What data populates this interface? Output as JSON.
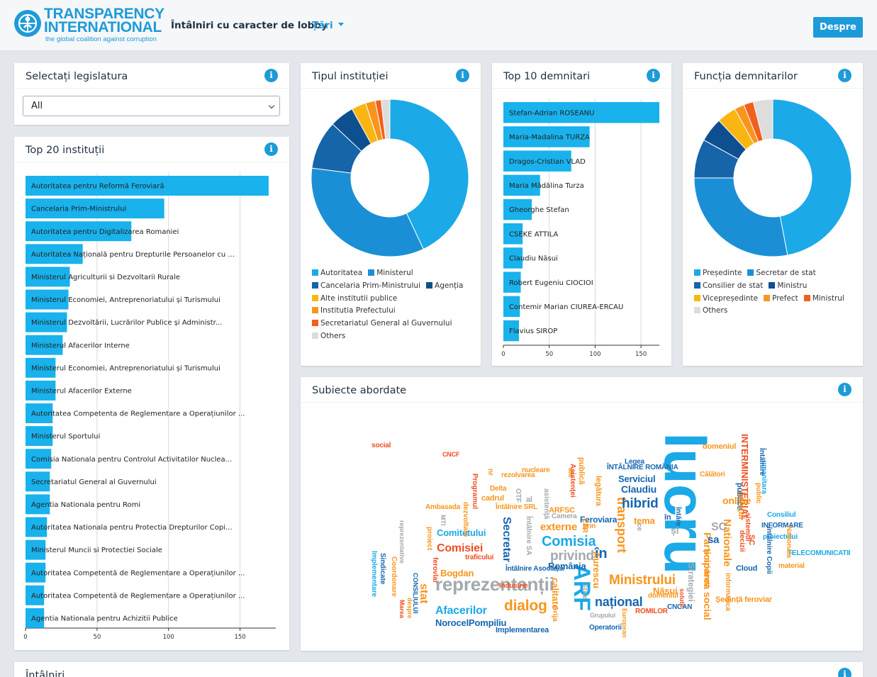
{
  "header": {
    "brand_line1": "TRANSPARENCY",
    "brand_line2": "INTERNATIONAL",
    "tagline": "the global coalition against corruption",
    "title": "Întâlniri cu caracter de lobby",
    "countries": "Țări",
    "about": "Despre"
  },
  "legislature": {
    "title": "Selectați legislatura",
    "value": "All",
    "info": "i"
  },
  "top20": {
    "title": "Top 20 instituții",
    "info": "i",
    "chart_data": {
      "type": "bar",
      "orientation": "horizontal",
      "categories": [
        "Autoritatea pentru Reformă Feroviară",
        "Cancelaria Prim-Ministrului",
        "Autoritatea pentru Digitalizarea Romaniei",
        "Autoritatea Națională pentru Drepturile Persoanelor cu ...",
        "Ministerul Agriculturii si Dezvoltarii Rurale",
        "Ministerul Economiei, Antreprenoriatului și Turismului",
        "Ministerul Dezvoltării, Lucrărilor Publice și Administr...",
        "Ministerul Afacerilor Interne",
        "Ministerul Economiei, Antreprenoriatului și Turismului",
        "Ministerul Afacerilor Externe",
        "Autoritatea Competenta de Reglementare a Operațiunilor ...",
        "Ministerul Sportului",
        "Comisia Nationala pentru Controlul Activitatilor Nuclea...",
        "Secretariatul General al Guvernului",
        "Agentia Nationala pentru Romi",
        "Autoritatea Nationala pentru Protectia Drepturilor Copi...",
        "Ministerul Muncii si Protectiei Sociale",
        "Autoritatea Competentă de Reglementare a Operațiunilor ...",
        "Autoritatea Competentă de Reglementare a Operațiunilor ...",
        "Agentia Nationala pentru Achizitii Publice"
      ],
      "values": [
        170,
        97,
        74,
        40,
        31,
        30,
        29,
        26,
        21,
        21,
        19,
        19,
        18,
        17,
        17,
        15,
        14,
        14,
        13,
        13
      ],
      "xticks": [
        "0",
        "50",
        "100",
        "150"
      ],
      "xlim": [
        0,
        175
      ]
    }
  },
  "tipul": {
    "title": "Tipul instituției",
    "info": "i",
    "chart_data": {
      "type": "pie",
      "donut": true,
      "labels": [
        "Autoritatea",
        "Ministerul",
        "Cancelaria Prim-Ministrului",
        "Agenția",
        "Alte institutii publice",
        "Institutia Prefectului",
        "Secretariatul General al Guvernului",
        "Others"
      ],
      "values": [
        43,
        34,
        10,
        5,
        3,
        2,
        1.2,
        1.8
      ],
      "colors": [
        "#1ba9e8",
        "#1b8fd6",
        "#1565a8",
        "#0e4f90",
        "#fbb513",
        "#f8951d",
        "#f2601d",
        "#dddddd"
      ]
    }
  },
  "top10": {
    "title": "Top 10 demnitari",
    "info": "i",
    "chart_data": {
      "type": "bar",
      "orientation": "horizontal",
      "categories": [
        "Stefan-Adrian ROSEANU",
        "Maria-Madalina TURZA",
        "Dragos-Cristian VLAD",
        "Maria Mădălina Turza",
        "Gheorghe Stefan",
        "CSEKE ATTILA",
        "Claudiu Năsui",
        "Robert Eugeniu CIOCIOI",
        "Contemir Marian CIUREA-ERCAU",
        "Flavius SIROP"
      ],
      "values": [
        170,
        94,
        74,
        40,
        31,
        21,
        21,
        19,
        18,
        17
      ],
      "xticks": [
        "0",
        "50",
        "100",
        "150"
      ],
      "xlim": [
        0,
        170
      ]
    }
  },
  "functia": {
    "title": "Funcția demnitarilor",
    "info": "i",
    "chart_data": {
      "type": "pie",
      "donut": true,
      "labels": [
        "Președinte",
        "Secretar de stat",
        "Consilier de stat",
        "Ministru",
        "Vicepreședinte",
        "Prefect",
        "Ministrul",
        "Others"
      ],
      "values": [
        47,
        28,
        8,
        5,
        4,
        2,
        2,
        4
      ],
      "colors": [
        "#1ba9e8",
        "#1b8fd6",
        "#1565a8",
        "#0e4f90",
        "#fbb513",
        "#f8951d",
        "#f2601d",
        "#dddddd"
      ]
    }
  },
  "subiecte": {
    "title": "Subiecte abordate",
    "info": "i",
    "colors": {
      "cyan": "#1ba9e8",
      "blue": "#1566b0",
      "orange": "#f8951d",
      "red": "#ef4e22",
      "gray": "#a3a9ae"
    },
    "words": [
      "lucru",
      "reprezentanții",
      "ARF",
      "Comisia",
      "privind",
      "dialog",
      "Ministrului",
      "național",
      "Afacerilor",
      "NorocelPompiliu",
      "transport",
      "hibrid",
      "Secretar",
      "Comitetului",
      "Comisiei",
      "stat",
      "Bogdan",
      "Claudiu",
      "externe",
      "Participarea social",
      "Nationale",
      "INTERMINISTERIAL",
      "și",
      "online",
      "SC",
      "sa",
      "în",
      "tema",
      "ARFSC",
      "Feroviara",
      "România",
      "Năsui",
      "Ședință feroviar",
      "Cloud",
      "TELECOMUNICATII",
      "INFORMARE",
      "proiectului",
      "Consiliul",
      "Implementarea",
      "Operatorii",
      "Grupului",
      "CNCAN",
      "Aurescu",
      "Strategiei",
      "domeniul",
      "Călători",
      "ÎNTÂLNIRE ROMÂNIA",
      "Legea",
      "Serviciul",
      "Delta",
      "cadrul",
      "Întâlnire SRL",
      "Programul",
      "Ambasada",
      "nucleare",
      "asistență",
      "al",
      "OTF",
      "Camera",
      "Întâlnire SA",
      "MTI",
      "Coordonare",
      "Sindicate",
      "Implementare",
      "reprezentative",
      "material",
      "Nationala",
      "întâlnire Copii",
      "umanitara",
      "Întâlnire",
      "publice",
      "prin",
      "în",
      "întăre",
      "calitate",
      "Strie",
      "ROMILOR",
      "European",
      "solutii",
      "publică",
      "legătura",
      "sistemul",
      "ale",
      "Asistenței",
      "CONSILIULUI",
      "Marea",
      "despre",
      "proiect",
      "ferovlar",
      "Grija",
      "informatica",
      "decizii",
      "traficului",
      "dezvoltare",
      "social",
      "Întâlnire Asociația",
      "CNCF",
      "nr",
      "domeniul",
      "rezolvarea",
      "ce",
      "judeţul",
      "prezidenti",
      "public",
      "CFR",
      "SC",
      "Industrie",
      "Nationala",
      "Afaceri"
    ]
  },
  "intalniri": {
    "title": "Întâlniri",
    "info": "i"
  }
}
